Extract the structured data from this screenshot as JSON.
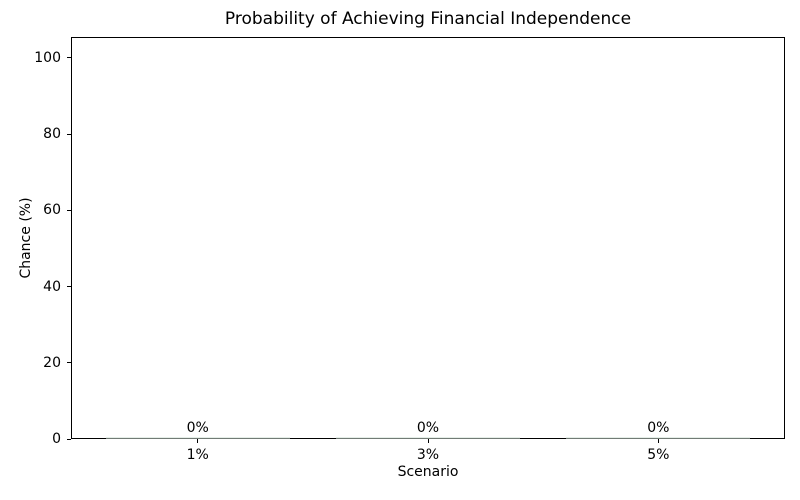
{
  "chart_data": {
    "type": "bar",
    "title": "Probability of Achieving Financial Independence",
    "xlabel": "Scenario",
    "ylabel": "Chance (%)",
    "categories": [
      "1%",
      "3%",
      "5%"
    ],
    "values": [
      0,
      0,
      0
    ],
    "bar_labels": [
      "0%",
      "0%",
      "0%"
    ],
    "yticks": [
      0,
      20,
      40,
      60,
      80,
      100
    ],
    "ylim": [
      0,
      105.5
    ],
    "xlim": [
      -0.55,
      2.55
    ],
    "bar_width": 0.8,
    "grid": false,
    "legend": "none",
    "colors": {
      "bar": "#cfe0d5",
      "axis": "#000000",
      "text": "#000000",
      "background": "#ffffff"
    }
  }
}
